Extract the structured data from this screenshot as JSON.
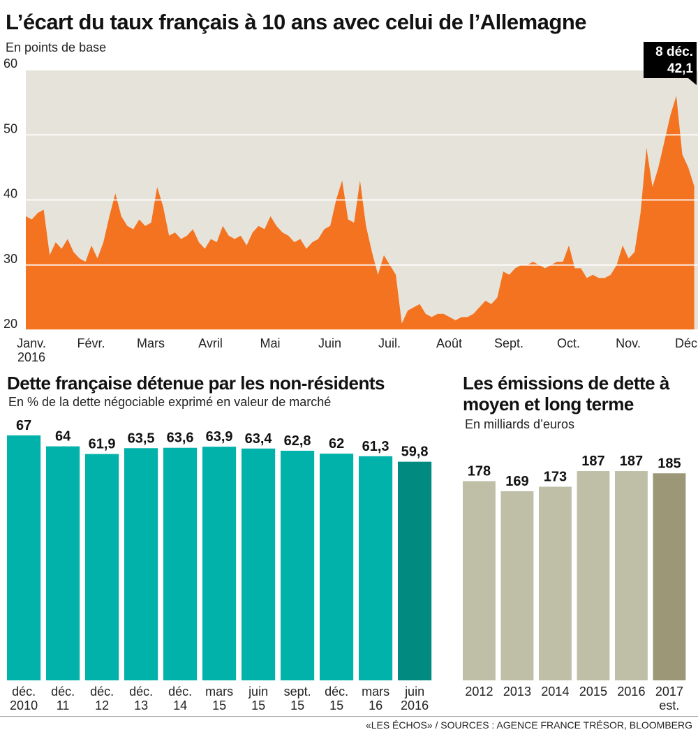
{
  "chart_data": [
    {
      "type": "area",
      "title": "L’écart du taux français à 10 ans avec celui de l’Allemagne",
      "subtitle": "En points de base",
      "categories": [
        "Janv. 2016",
        "Févr.",
        "Mars",
        "Avril",
        "Mai",
        "Juin",
        "Juil.",
        "Août",
        "Sept.",
        "Oct.",
        "Nov.",
        "Déc."
      ],
      "values": [
        [
          37.5,
          37,
          38,
          38.5,
          31.5,
          33.5,
          32.5,
          34,
          32,
          31
        ],
        [
          30.5,
          33,
          31,
          33.5,
          37.5,
          41,
          37.5,
          36,
          35.5,
          37
        ],
        [
          36,
          36.5,
          42,
          39,
          34.5,
          35,
          34,
          34.5,
          35.5,
          33.5
        ],
        [
          32.5,
          34,
          33.5,
          36,
          34.5,
          34,
          34.5,
          33,
          35,
          36
        ],
        [
          35.5,
          37.5,
          36,
          35,
          34.5,
          33.5,
          34,
          32.5,
          33.5,
          34
        ],
        [
          35.5,
          36,
          40,
          43,
          37,
          36.5,
          43,
          36,
          32,
          28.5
        ],
        [
          31.5,
          30,
          28.5,
          21,
          23,
          23.5,
          24,
          22.5,
          22,
          22.5
        ],
        [
          22.5,
          22,
          21.5,
          22,
          22,
          22.5,
          23.5,
          24.5,
          24,
          25
        ],
        [
          29,
          28.5,
          29.5,
          30,
          30,
          30.5,
          30,
          29.5,
          30,
          30.5
        ],
        [
          30.5,
          33,
          29.5,
          29.5,
          28,
          28.5,
          28,
          28,
          28.5,
          30
        ],
        [
          33,
          31,
          32,
          38,
          48,
          42,
          45,
          49,
          53,
          56
        ],
        [
          47,
          45,
          42.1
        ]
      ],
      "color": "#f47321",
      "background": "#e6e4da",
      "ylim": [
        20,
        60
      ],
      "yticks": [
        20,
        30,
        40,
        50,
        60
      ],
      "grid": true,
      "annotation": {
        "date": "8 déc.",
        "value_label": "42,1"
      }
    },
    {
      "type": "bar",
      "title": "Dette française détenue par les non-résidents",
      "subtitle": "En % de la dette négociable exprimé en valeur de marché",
      "categories": [
        "déc. 2010",
        "déc. 11",
        "déc. 12",
        "déc. 13",
        "déc. 14",
        "mars 15",
        "juin 15",
        "sept. 15",
        "déc. 15",
        "mars 16",
        "juin 2016"
      ],
      "values": [
        67,
        64,
        61.9,
        63.5,
        63.6,
        63.9,
        63.4,
        62.8,
        62,
        61.3,
        59.8
      ],
      "value_labels": [
        "67",
        "64",
        "61,9",
        "63,5",
        "63,6",
        "63,9",
        "63,4",
        "62,8",
        "62",
        "61,3",
        "59,8"
      ],
      "colors": [
        "#00b2a9",
        "#00b2a9",
        "#00b2a9",
        "#00b2a9",
        "#00b2a9",
        "#00b2a9",
        "#00b2a9",
        "#00b2a9",
        "#00b2a9",
        "#00b2a9",
        "#008a80"
      ],
      "ylim": [
        0,
        70
      ]
    },
    {
      "type": "bar",
      "title": "Les émissions de dette à moyen et long terme",
      "subtitle": "En milliards d’euros",
      "categories": [
        "2012",
        "2013",
        "2014",
        "2015",
        "2016",
        "2017 est."
      ],
      "values": [
        178,
        169,
        173,
        187,
        187,
        185
      ],
      "colors": [
        "#bfbfa8",
        "#bfbfa8",
        "#bfbfa8",
        "#bfbfa8",
        "#bfbfa8",
        "#9c9776"
      ],
      "ylim": [
        0,
        200
      ]
    }
  ],
  "source": "«LES ÉCHOS» / SOURCES : AGENCE FRANCE TRÉSOR, BLOOMBERG"
}
